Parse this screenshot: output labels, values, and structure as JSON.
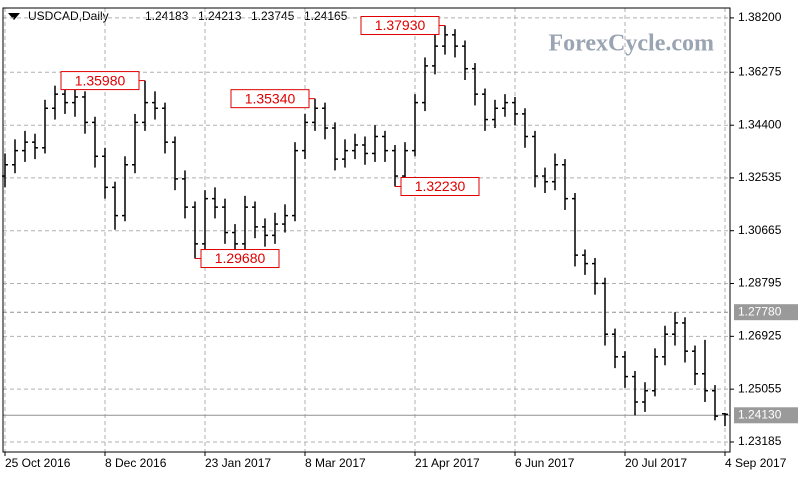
{
  "chart_data": {
    "type": "ohlc",
    "title": "USDCAD,Daily",
    "watermark": "ForexCycle.com",
    "color": "#000000",
    "grid": true,
    "categories": [
      "25 Oct 2016",
      null,
      null,
      null,
      null,
      null,
      null,
      null,
      null,
      null,
      "8 Dec 2016",
      null,
      null,
      null,
      null,
      null,
      null,
      null,
      null,
      null,
      "23 Jan 2017",
      null,
      null,
      null,
      null,
      null,
      null,
      null,
      null,
      null,
      "8 Mar 2017",
      null,
      null,
      null,
      null,
      null,
      null,
      null,
      null,
      null,
      null,
      "21 Apr 2017",
      null,
      null,
      null,
      null,
      null,
      null,
      null,
      null,
      null,
      "6 Jun 2017",
      null,
      null,
      null,
      null,
      null,
      null,
      null,
      null,
      null,
      null,
      "20 Jul 2017",
      null,
      null,
      null,
      null,
      null,
      null,
      null,
      null,
      null,
      "4 Sep 2017"
    ],
    "open": [
      1.326,
      1.33,
      1.335,
      1.338,
      1.336,
      1.35,
      1.355,
      1.352,
      1.354,
      1.345,
      1.333,
      1.322,
      1.312,
      1.33,
      1.345,
      1.352,
      1.35,
      1.338,
      1.325,
      1.315,
      1.302,
      1.318,
      1.315,
      1.306,
      1.302,
      1.315,
      1.308,
      1.305,
      1.309,
      1.312,
      1.335,
      1.345,
      1.35,
      1.343,
      1.332,
      1.335,
      1.337,
      1.334,
      1.34,
      1.335,
      1.326,
      1.335,
      1.352,
      1.365,
      1.372,
      1.376,
      1.372,
      1.364,
      1.355,
      1.346,
      1.35,
      1.352,
      1.348,
      1.34,
      1.326,
      1.324,
      1.33,
      1.318,
      1.298,
      1.295,
      1.288,
      1.27,
      1.262,
      1.255,
      1.246,
      1.25,
      1.262,
      1.27,
      1.274,
      1.264,
      1.256,
      1.25,
      1.24183
    ],
    "high": [
      1.334,
      1.339,
      1.342,
      1.341,
      1.353,
      1.358,
      1.357,
      1.357,
      1.356,
      1.347,
      1.336,
      1.324,
      1.333,
      1.348,
      1.3598,
      1.356,
      1.352,
      1.34,
      1.328,
      1.317,
      1.321,
      1.322,
      1.318,
      1.309,
      1.319,
      1.317,
      1.311,
      1.313,
      1.316,
      1.338,
      1.348,
      1.3534,
      1.352,
      1.345,
      1.339,
      1.341,
      1.34,
      1.344,
      1.342,
      1.337,
      1.338,
      1.355,
      1.368,
      1.376,
      1.3793,
      1.378,
      1.374,
      1.366,
      1.357,
      1.353,
      1.355,
      1.354,
      1.35,
      1.342,
      1.329,
      1.334,
      1.332,
      1.32,
      1.3,
      1.297,
      1.29,
      1.272,
      1.264,
      1.257,
      1.253,
      1.265,
      1.273,
      1.2778,
      1.276,
      1.266,
      1.268,
      1.252,
      1.24213
    ],
    "low": [
      1.322,
      1.327,
      1.331,
      1.332,
      1.334,
      1.346,
      1.348,
      1.347,
      1.341,
      1.329,
      1.318,
      1.307,
      1.31,
      1.327,
      1.342,
      1.346,
      1.334,
      1.321,
      1.311,
      1.2968,
      1.3,
      1.311,
      1.302,
      1.298,
      1.3,
      1.304,
      1.301,
      1.302,
      1.306,
      1.31,
      1.332,
      1.342,
      1.339,
      1.328,
      1.329,
      1.332,
      1.33,
      1.331,
      1.331,
      1.3223,
      1.324,
      1.333,
      1.349,
      1.362,
      1.369,
      1.368,
      1.36,
      1.351,
      1.342,
      1.343,
      1.347,
      1.344,
      1.336,
      1.322,
      1.32,
      1.321,
      1.314,
      1.294,
      1.291,
      1.284,
      1.266,
      1.258,
      1.251,
      1.2413,
      1.2425,
      1.248,
      1.259,
      1.266,
      1.26,
      1.252,
      1.246,
      1.2395,
      1.23745
    ],
    "close": [
      1.33,
      1.335,
      1.338,
      1.336,
      1.35,
      1.355,
      1.352,
      1.354,
      1.345,
      1.333,
      1.322,
      1.312,
      1.33,
      1.345,
      1.352,
      1.35,
      1.338,
      1.325,
      1.315,
      1.302,
      1.318,
      1.315,
      1.306,
      1.302,
      1.315,
      1.308,
      1.305,
      1.309,
      1.312,
      1.335,
      1.345,
      1.35,
      1.343,
      1.332,
      1.335,
      1.337,
      1.334,
      1.34,
      1.335,
      1.326,
      1.335,
      1.352,
      1.365,
      1.372,
      1.376,
      1.372,
      1.364,
      1.355,
      1.346,
      1.35,
      1.352,
      1.348,
      1.34,
      1.326,
      1.324,
      1.33,
      1.318,
      1.298,
      1.295,
      1.288,
      1.27,
      1.262,
      1.255,
      1.246,
      1.25,
      1.262,
      1.27,
      1.274,
      1.264,
      1.256,
      1.25,
      1.241,
      1.24165
    ],
    "ylim": [
      1.2283,
      1.3855
    ],
    "yticks": [
      {
        "value": 1.382,
        "label": "1.38200"
      },
      {
        "value": 1.36275,
        "label": "1.36275"
      },
      {
        "value": 1.344,
        "label": "1.34400"
      },
      {
        "value": 1.32535,
        "label": "1.32535"
      },
      {
        "value": 1.30665,
        "label": "1.30665"
      },
      {
        "value": 1.28795,
        "label": "1.28795"
      },
      {
        "value": 1.26925,
        "label": "1.26925"
      },
      {
        "value": 1.25055,
        "label": "1.25055"
      },
      {
        "value": 1.23185,
        "label": "1.23185"
      }
    ],
    "levels": [
      {
        "value": 1.2778,
        "label": "1.27780",
        "style": "dashed"
      },
      {
        "value": 1.2413,
        "label": "1.24130",
        "style": "solid"
      }
    ],
    "annotations": [
      {
        "value": 1.3598,
        "label": "1.35980"
      },
      {
        "value": 1.2968,
        "label": "1.29680"
      },
      {
        "value": 1.3534,
        "label": "1.35340"
      },
      {
        "value": 1.3793,
        "label": "1.37930"
      },
      {
        "value": 1.3223,
        "label": "1.32230"
      }
    ]
  }
}
